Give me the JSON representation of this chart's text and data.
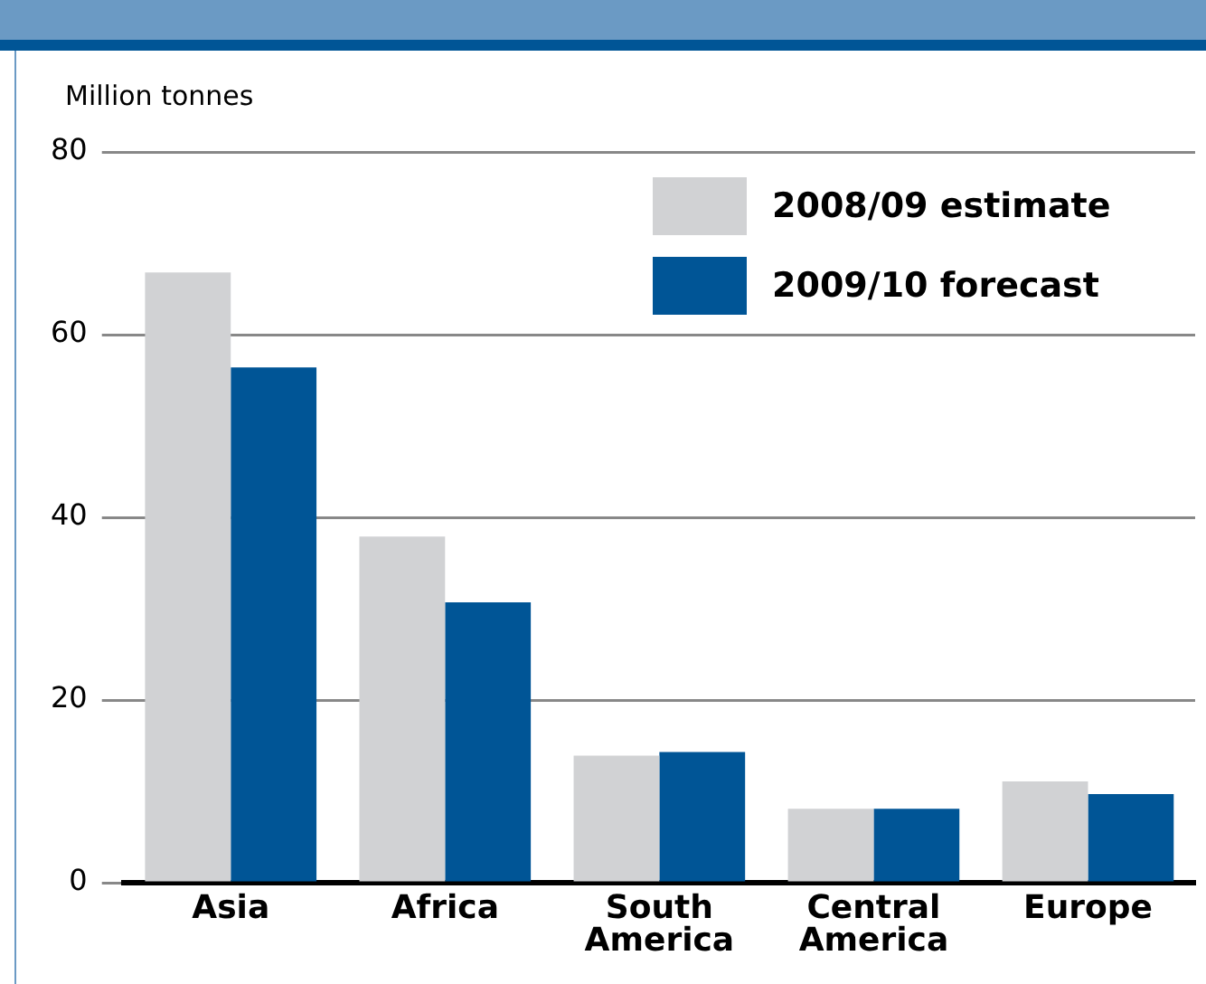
{
  "chart_data": {
    "type": "bar",
    "ylabel": "Million tonnes",
    "categories": [
      "Asia",
      "Africa",
      "South America",
      "Central America",
      "Europe"
    ],
    "series": [
      {
        "name": "2008/09 estimate",
        "color": "#d1d2d4",
        "values": [
          66.8,
          37.9,
          13.9,
          8.1,
          11.1
        ]
      },
      {
        "name": "2009/10 forecast",
        "color": "#005596",
        "values": [
          56.4,
          30.7,
          14.3,
          8.1,
          9.7
        ]
      }
    ],
    "ylim": [
      0,
      80
    ],
    "yticks": [
      0,
      20,
      40,
      60,
      80
    ],
    "grid": "y",
    "legend": "top right"
  }
}
